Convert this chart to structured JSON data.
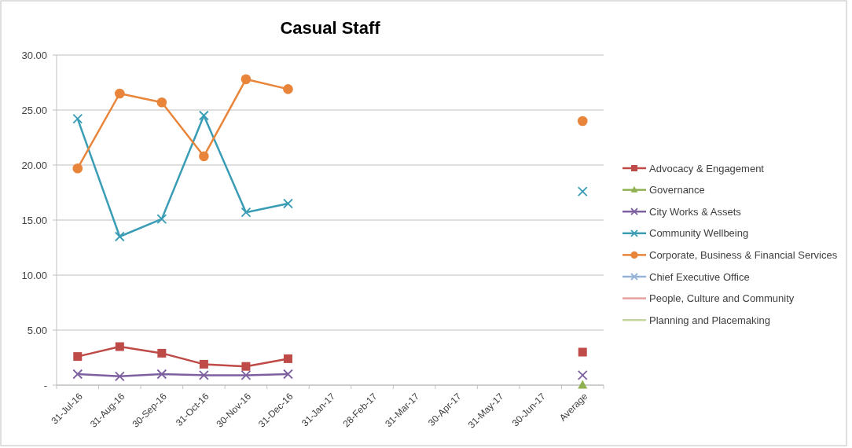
{
  "chart_data": {
    "type": "line",
    "title": "Casual Staff",
    "categories": [
      "31-Jul-16",
      "31-Aug-16",
      "30-Sep-16",
      "31-Oct-16",
      "30-Nov-16",
      "31-Dec-16",
      "31-Jan-17",
      "28-Feb-17",
      "31-Mar-17",
      "30-Apr-17",
      "31-May-17",
      "30-Jun-17",
      "Average"
    ],
    "series": [
      {
        "name": "Advocacy & Engagement",
        "color": "#be4b48",
        "marker": "square",
        "values": [
          2.6,
          3.5,
          2.9,
          1.9,
          1.7,
          2.4,
          null,
          null,
          null,
          null,
          null,
          null,
          3.0
        ]
      },
      {
        "name": "Governance",
        "color": "#8fb04e",
        "marker": "triangle",
        "values": [
          null,
          null,
          null,
          null,
          null,
          null,
          null,
          null,
          null,
          null,
          null,
          null,
          0
        ]
      },
      {
        "name": "City Works & Assets",
        "color": "#7d60a0",
        "marker": "cross",
        "values": [
          1.0,
          0.8,
          1.0,
          0.9,
          0.9,
          1.0,
          null,
          null,
          null,
          null,
          null,
          null,
          0.9
        ]
      },
      {
        "name": "Community Wellbeing",
        "color": "#3a9db5",
        "marker": "cross",
        "values": [
          24.2,
          13.5,
          15.1,
          24.5,
          15.7,
          16.5,
          null,
          null,
          null,
          null,
          null,
          null,
          17.6
        ]
      },
      {
        "name": "Corporate, Business & Financial Services",
        "color": "#e8853a",
        "marker": "circle",
        "values": [
          19.7,
          26.5,
          25.7,
          20.8,
          27.8,
          26.9,
          null,
          null,
          null,
          null,
          null,
          null,
          24.0
        ]
      },
      {
        "name": "Chief Executive Office",
        "color": "#95b3d7",
        "marker": "cross",
        "values": [
          null,
          null,
          null,
          null,
          null,
          null,
          null,
          null,
          null,
          null,
          null,
          null,
          null
        ]
      },
      {
        "name": "People, Culture and Community",
        "color": "#e6a0a0",
        "marker": "none",
        "values": [
          null,
          null,
          null,
          null,
          null,
          null,
          null,
          null,
          null,
          null,
          null,
          null,
          null
        ]
      },
      {
        "name": "Planning and Placemaking",
        "color": "#c3d69b",
        "marker": "none",
        "values": [
          null,
          null,
          null,
          null,
          null,
          null,
          null,
          null,
          null,
          null,
          null,
          null,
          null
        ]
      }
    ],
    "ylim": [
      0,
      30
    ],
    "yticks": [
      {
        "value": 0,
        "label": "-"
      },
      {
        "value": 5,
        "label": "5.00"
      },
      {
        "value": 10,
        "label": "10.00"
      },
      {
        "value": 15,
        "label": "15.00"
      },
      {
        "value": 20,
        "label": "20.00"
      },
      {
        "value": 25,
        "label": "25.00"
      },
      {
        "value": 30,
        "label": "30.00"
      }
    ],
    "grid": "y",
    "legend": "right",
    "line_style": "solid"
  }
}
